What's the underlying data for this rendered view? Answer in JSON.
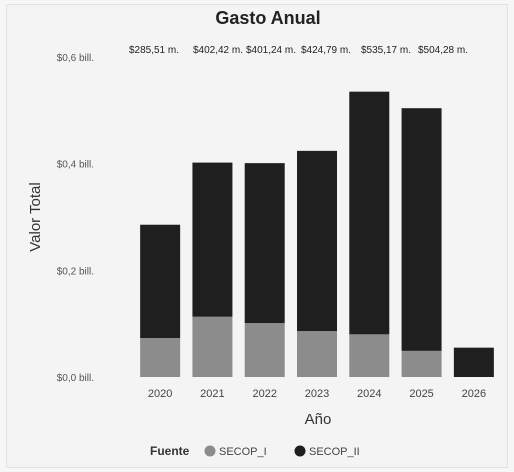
{
  "chart_data": {
    "type": "bar",
    "stacked": true,
    "title": "Gasto Anual",
    "xlabel": "Año",
    "ylabel": "Valor Total",
    "categories": [
      "2020",
      "2021",
      "2022",
      "2023",
      "2024",
      "2025",
      "2026"
    ],
    "ylim": [
      0,
      0.6
    ],
    "yticks": [
      {
        "value": 0.0,
        "label": "$0,0 bill."
      },
      {
        "value": 0.2,
        "label": "$0,2 bill."
      },
      {
        "value": 0.4,
        "label": "$0,4 bill."
      },
      {
        "value": 0.6,
        "label": "$0,6 bill."
      }
    ],
    "series": [
      {
        "name": "SECOP_I",
        "color": "#8c8c8c",
        "values": [
          0.073,
          0.113,
          0.101,
          0.086,
          0.08,
          0.049,
          0.0
        ]
      },
      {
        "name": "SECOP_II",
        "color": "#1f1f1f",
        "values": [
          0.2125,
          0.289,
          0.3,
          0.338,
          0.455,
          0.455,
          0.055
        ]
      }
    ],
    "total_labels": [
      "$285,51 m.",
      "$402,42 m.",
      "$401,24 m.",
      "$424,79 m.",
      "$535,17 m.",
      "$504,28 m."
    ],
    "grid": false,
    "legend": {
      "title": "Fuente",
      "placement": "bottom"
    }
  }
}
